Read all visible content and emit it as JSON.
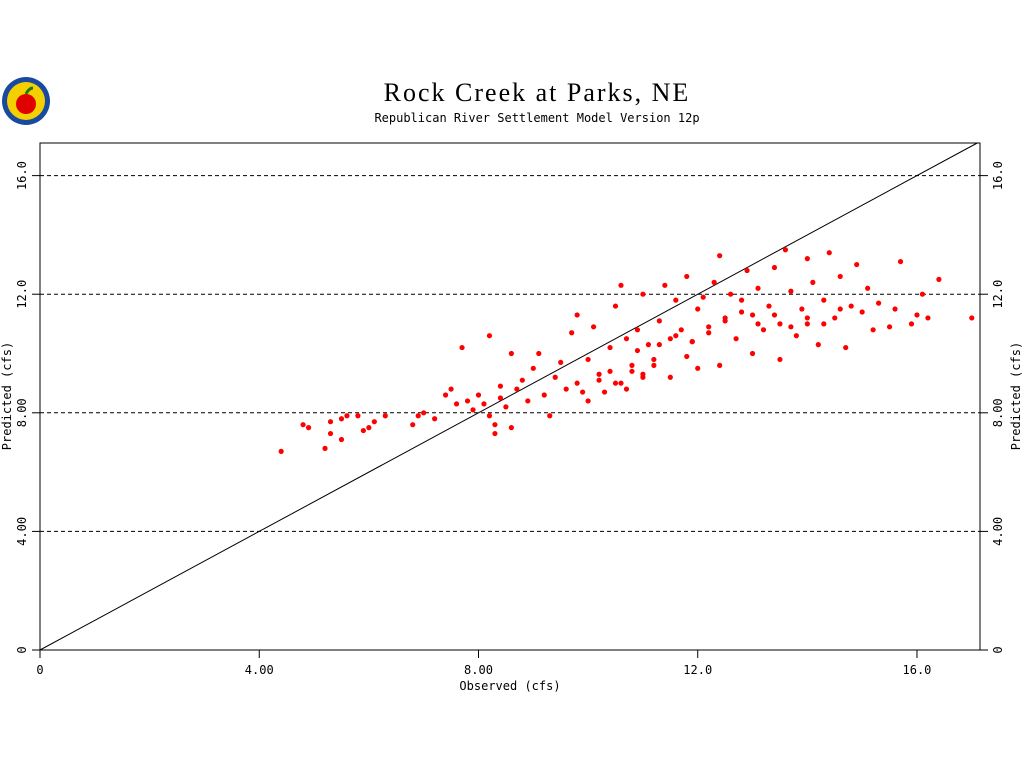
{
  "chart_data": {
    "type": "scatter",
    "title": "Rock Creek at Parks, NE",
    "subtitle": "Republican River Settlement Model Version 12p",
    "x_label": "Observed (cfs)",
    "y_label": "Predicted (cfs)",
    "color": "#ff0000",
    "xlim": [
      0,
      17.15
    ],
    "ylim": [
      0,
      17.1
    ],
    "xticks": [
      0,
      {
        "value": 4,
        "label": "4.00"
      },
      {
        "value": 8,
        "label": "8.00"
      },
      {
        "value": 12,
        "label": "12.0"
      },
      {
        "value": 16,
        "label": "16.0"
      }
    ],
    "yticks": [
      0,
      {
        "value": 4,
        "label": "4.00"
      },
      {
        "value": 8,
        "label": "8.00"
      },
      {
        "value": 12,
        "label": "12.0"
      },
      {
        "value": 16,
        "label": "16.0"
      }
    ],
    "grid": true,
    "x": [
      4.4,
      4.8,
      4.9,
      5.2,
      5.3,
      5.3,
      5.5,
      5.5,
      5.6,
      5.8,
      5.9,
      6.0,
      6.1,
      6.3,
      6.8,
      6.9,
      7.0,
      7.2,
      7.4,
      7.5,
      7.6,
      7.7,
      7.8,
      7.9,
      8.0,
      8.1,
      8.2,
      8.2,
      8.3,
      8.3,
      8.4,
      8.4,
      8.5,
      8.6,
      8.6,
      8.7,
      8.8,
      8.9,
      9.0,
      9.1,
      9.2,
      9.3,
      9.4,
      9.5,
      9.6,
      9.7,
      9.8,
      9.8,
      9.9,
      10.0,
      10.0,
      10.1,
      10.2,
      10.3,
      10.4,
      10.5,
      10.5,
      10.6,
      10.7,
      10.7,
      10.8,
      10.9,
      11.0,
      11.0,
      11.1,
      11.2,
      11.3,
      11.4,
      11.5,
      11.5,
      11.6,
      11.7,
      11.8,
      11.8,
      11.9,
      12.0,
      12.0,
      12.1,
      12.2,
      12.3,
      12.4,
      12.4,
      12.5,
      12.6,
      12.7,
      12.8,
      12.9,
      13.0,
      13.0,
      13.1,
      13.2,
      13.3,
      13.4,
      13.5,
      13.5,
      13.6,
      13.7,
      13.8,
      13.9,
      14.0,
      14.0,
      14.1,
      14.2,
      14.3,
      14.4,
      14.5,
      14.6,
      14.7,
      14.8,
      14.9,
      15.0,
      15.1,
      15.2,
      15.3,
      15.5,
      15.6,
      15.7,
      15.9,
      16.0,
      16.1,
      16.2,
      16.4,
      17.0,
      10.2,
      10.4,
      10.6,
      10.8,
      11.0,
      11.2,
      10.9,
      11.3,
      11.6,
      11.9,
      12.2,
      12.5,
      12.8,
      13.1,
      13.4,
      13.7,
      14.0,
      14.3,
      14.6
    ],
    "y": [
      6.7,
      7.6,
      7.5,
      6.8,
      7.7,
      7.3,
      7.1,
      7.8,
      7.9,
      7.9,
      7.4,
      7.5,
      7.7,
      7.9,
      7.6,
      7.9,
      8.0,
      7.8,
      8.6,
      8.8,
      8.3,
      10.2,
      8.4,
      8.1,
      8.6,
      8.3,
      7.9,
      10.6,
      7.3,
      7.6,
      8.5,
      8.9,
      8.2,
      7.5,
      10.0,
      8.8,
      9.1,
      8.4,
      9.5,
      10.0,
      8.6,
      7.9,
      9.2,
      9.7,
      8.8,
      10.7,
      11.3,
      9.0,
      8.7,
      9.8,
      8.4,
      10.9,
      9.3,
      8.7,
      10.2,
      9.0,
      11.6,
      12.3,
      10.5,
      8.8,
      9.4,
      10.8,
      9.2,
      12.0,
      10.3,
      9.6,
      11.1,
      12.3,
      10.5,
      9.2,
      11.8,
      10.8,
      12.6,
      9.9,
      10.4,
      11.5,
      9.5,
      11.9,
      10.7,
      12.4,
      13.3,
      9.6,
      11.2,
      12.0,
      10.5,
      11.8,
      12.8,
      11.3,
      10.0,
      12.2,
      10.8,
      11.6,
      12.9,
      11.0,
      9.8,
      13.5,
      12.1,
      10.6,
      11.5,
      13.2,
      11.0,
      12.4,
      10.3,
      11.8,
      13.4,
      11.2,
      12.6,
      10.2,
      11.6,
      13.0,
      11.4,
      12.2,
      10.8,
      11.7,
      10.9,
      11.5,
      13.1,
      11.0,
      11.3,
      12.0,
      11.2,
      12.5,
      11.2,
      9.1,
      9.4,
      9.0,
      9.6,
      9.3,
      9.8,
      10.1,
      10.3,
      10.6,
      10.4,
      10.9,
      11.1,
      11.4,
      11.0,
      11.3,
      10.9,
      11.2,
      11.0,
      11.5
    ]
  }
}
